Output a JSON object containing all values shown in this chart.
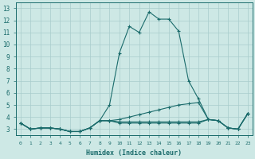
{
  "xlabel": "Humidex (Indice chaleur)",
  "xlim": [
    -0.5,
    23.5
  ],
  "ylim": [
    2.5,
    13.5
  ],
  "yticks": [
    3,
    4,
    5,
    6,
    7,
    8,
    9,
    10,
    11,
    12,
    13
  ],
  "xticks": [
    0,
    1,
    2,
    3,
    4,
    5,
    6,
    7,
    8,
    9,
    10,
    11,
    12,
    13,
    14,
    15,
    16,
    17,
    18,
    19,
    20,
    21,
    22,
    23
  ],
  "bg_color": "#cde8e5",
  "line_color": "#1a6b6b",
  "grid_color": "#a8cccc",
  "series": [
    {
      "x": [
        0,
        1,
        2,
        3,
        4,
        5,
        6,
        7,
        8,
        9,
        10,
        11,
        12,
        13,
        14,
        15,
        16,
        17,
        18,
        19,
        20,
        21,
        22,
        23
      ],
      "y": [
        3.5,
        3.0,
        3.1,
        3.1,
        3.0,
        2.8,
        2.8,
        3.1,
        3.7,
        5.0,
        9.3,
        11.5,
        11.0,
        12.7,
        12.1,
        12.1,
        11.1,
        7.0,
        5.5,
        3.8,
        3.7,
        3.1,
        3.0,
        4.3
      ]
    },
    {
      "x": [
        0,
        1,
        2,
        3,
        4,
        5,
        6,
        7,
        8,
        9,
        10,
        11,
        12,
        13,
        14,
        15,
        16,
        17,
        18,
        19,
        20,
        21,
        22,
        23
      ],
      "y": [
        3.5,
        3.0,
        3.1,
        3.1,
        3.0,
        2.8,
        2.8,
        3.1,
        3.7,
        3.7,
        3.8,
        4.0,
        4.2,
        4.4,
        4.6,
        4.8,
        5.0,
        5.1,
        5.2,
        3.8,
        3.7,
        3.1,
        3.0,
        4.3
      ]
    },
    {
      "x": [
        0,
        1,
        2,
        3,
        4,
        5,
        6,
        7,
        8,
        9,
        10,
        11,
        12,
        13,
        14,
        15,
        16,
        17,
        18,
        19,
        20,
        21,
        22,
        23
      ],
      "y": [
        3.5,
        3.0,
        3.1,
        3.1,
        3.0,
        2.8,
        2.8,
        3.1,
        3.7,
        3.7,
        3.6,
        3.6,
        3.6,
        3.6,
        3.6,
        3.6,
        3.6,
        3.6,
        3.6,
        3.8,
        3.7,
        3.1,
        3.0,
        4.3
      ]
    },
    {
      "x": [
        0,
        1,
        2,
        3,
        4,
        5,
        6,
        7,
        8,
        9,
        10,
        11,
        12,
        13,
        14,
        15,
        16,
        17,
        18,
        19,
        20,
        21,
        22,
        23
      ],
      "y": [
        3.5,
        3.0,
        3.1,
        3.1,
        3.0,
        2.8,
        2.8,
        3.1,
        3.7,
        3.7,
        3.5,
        3.5,
        3.5,
        3.5,
        3.5,
        3.5,
        3.5,
        3.5,
        3.5,
        3.8,
        3.7,
        3.1,
        3.0,
        4.3
      ]
    }
  ]
}
